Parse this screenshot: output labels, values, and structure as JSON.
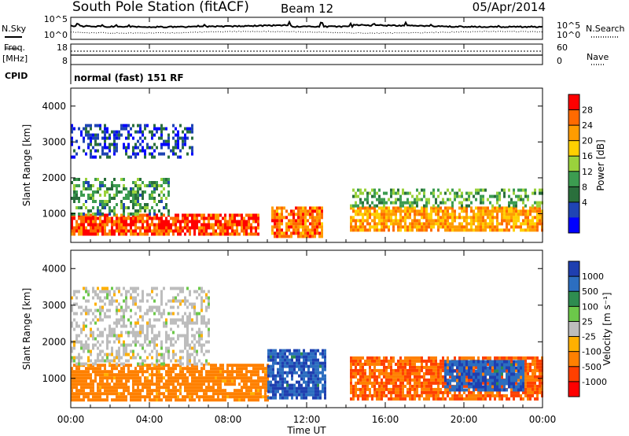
{
  "header": {
    "station_title": "South Pole Station (fitACF)",
    "beam_label": "Beam 12",
    "date_label": "05/Apr/2014"
  },
  "sidebar": {
    "nsky_label": "N.Sky",
    "freq_label_1": "Freq.",
    "freq_label_2": "[MHz]",
    "cpid_label": "CPID",
    "nsearch_label": "N.Search",
    "nave_label": "Nave"
  },
  "noise_axes": {
    "left_top": "10^5",
    "left_bottom": "10^0",
    "right_top": "10^5",
    "right_bottom": "10^0"
  },
  "freq_axes": {
    "left_top": "18",
    "left_bottom": "8",
    "right_top": "60",
    "right_bottom": "0"
  },
  "cpid_text": "normal (fast) 151 RF",
  "chart_data": [
    {
      "type": "heatmap",
      "panel": "power",
      "ylabel": "Slant Range [km]",
      "yticks": [
        "1000",
        "2000",
        "3000",
        "4000"
      ],
      "ylim": [
        200,
        4500
      ],
      "xlim_hours": [
        0,
        24
      ],
      "colorbar_label": "Power [dB]",
      "colorbar_ticks": [
        "28",
        "24",
        "20",
        "16",
        "12",
        "8",
        "4"
      ],
      "colorbar_colors": [
        "#ff0000",
        "#ff6a00",
        "#ff9c00",
        "#ffd000",
        "#9ad23c",
        "#3c9c50",
        "#2a6f3c",
        "#1f44b4",
        "#0000ff"
      ],
      "echo_bands": [
        {
          "start_h": 0.0,
          "end_h": 9.6,
          "range_low_km": 400,
          "range_high_km": 1000,
          "power_db": 30
        },
        {
          "start_h": 0.0,
          "end_h": 5.0,
          "range_low_km": 1000,
          "range_high_km": 2000,
          "power_db": 12
        },
        {
          "start_h": 0.0,
          "end_h": 6.2,
          "range_low_km": 2600,
          "range_high_km": 3500,
          "power_db": 6
        },
        {
          "start_h": 10.2,
          "end_h": 12.8,
          "range_low_km": 400,
          "range_high_km": 1200,
          "power_db": 27
        },
        {
          "start_h": 14.2,
          "end_h": 24.0,
          "range_low_km": 500,
          "range_high_km": 1200,
          "power_db": 25
        },
        {
          "start_h": 14.2,
          "end_h": 24.0,
          "range_low_km": 1200,
          "range_high_km": 1700,
          "power_db": 14
        }
      ]
    },
    {
      "type": "heatmap",
      "panel": "velocity",
      "ylabel": "Slant Range [km]",
      "yticks": [
        "1000",
        "2000",
        "3000",
        "4000"
      ],
      "ylim": [
        200,
        4500
      ],
      "xlabel": "Time UT",
      "xticks": [
        "00:00",
        "04:00",
        "08:00",
        "12:00",
        "16:00",
        "20:00",
        "00:00"
      ],
      "xlim_hours": [
        0,
        24
      ],
      "colorbar_label": "Velocity [m s⁻¹]",
      "colorbar_ticks": [
        "1000",
        "500",
        "100",
        "25",
        "-25",
        "-100",
        "-500",
        "-1000"
      ],
      "colorbar_colors": [
        "#1f3fb0",
        "#2c6ec0",
        "#2e8c50",
        "#6cc84a",
        "#bdbdbd",
        "#ffb000",
        "#ff8000",
        "#ff4000",
        "#ff0000"
      ],
      "echo_bands": [
        {
          "start_h": 0.0,
          "end_h": 10.0,
          "range_low_km": 400,
          "range_high_km": 1400,
          "velocity_ms": -150
        },
        {
          "start_h": 0.0,
          "end_h": 7.0,
          "range_low_km": 1400,
          "range_high_km": 3500,
          "velocity_ms": 0
        },
        {
          "start_h": 10.0,
          "end_h": 13.0,
          "range_low_km": 500,
          "range_high_km": 1800,
          "velocity_ms": 700
        },
        {
          "start_h": 14.2,
          "end_h": 24.0,
          "range_low_km": 400,
          "range_high_km": 1600,
          "velocity_ms": -300
        },
        {
          "start_h": 19.0,
          "end_h": 23.0,
          "range_low_km": 700,
          "range_high_km": 1500,
          "velocity_ms": 700
        }
      ]
    }
  ]
}
